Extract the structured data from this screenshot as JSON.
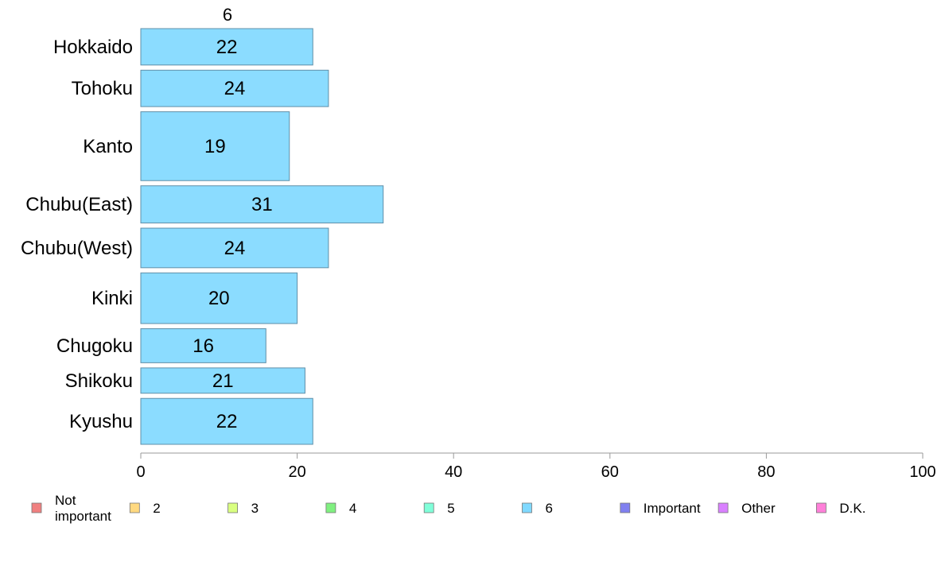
{
  "chart_data": {
    "type": "bar",
    "orientation": "horizontal",
    "column_label": "6",
    "categories": [
      "Hokkaido",
      "Tohoku",
      "Kanto",
      "Chubu(East)",
      "Chubu(West)",
      "Kinki",
      "Chugoku",
      "Shikoku",
      "Kyushu"
    ],
    "series": [
      {
        "name": "6",
        "values": [
          22,
          24,
          19,
          31,
          24,
          20,
          16,
          21,
          22
        ]
      }
    ],
    "bar_labels": [
      "22",
      "24",
      "19",
      "31",
      "24",
      "20",
      "16",
      "21",
      "22"
    ],
    "relative_bar_widths": [
      4.6,
      4.6,
      8.7,
      4.7,
      5.0,
      6.4,
      4.3,
      3.2,
      5.8
    ],
    "xlim": [
      0,
      100
    ],
    "x_ticks": [
      0,
      20,
      40,
      60,
      80,
      100
    ],
    "x_tick_labels": [
      "0",
      "20",
      "40",
      "60",
      "80",
      "100"
    ],
    "grid": false,
    "legend_position": "bottom",
    "legend": [
      {
        "label_lines": [
          "Not",
          "important"
        ],
        "color": "#f08080"
      },
      {
        "label_lines": [
          "2"
        ],
        "color": "#ffd980"
      },
      {
        "label_lines": [
          "3"
        ],
        "color": "#d9ff80"
      },
      {
        "label_lines": [
          "4"
        ],
        "color": "#80f080"
      },
      {
        "label_lines": [
          "5"
        ],
        "color": "#80ffd9"
      },
      {
        "label_lines": [
          "6"
        ],
        "color": "#80d9ff"
      },
      {
        "label_lines": [
          "Important"
        ],
        "color": "#8080f0"
      },
      {
        "label_lines": [
          "Other"
        ],
        "color": "#d980ff"
      },
      {
        "label_lines": [
          "D.K."
        ],
        "color": "#ff80d9"
      }
    ],
    "bar_color": "#8bdcff",
    "bar_stroke": "#5f8fa8",
    "axis_color": "#999999"
  }
}
